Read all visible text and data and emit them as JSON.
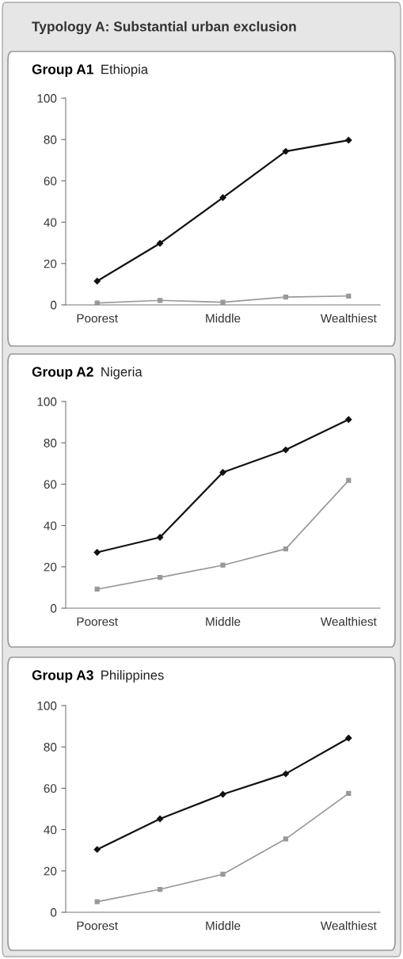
{
  "chart_data": [
    {
      "type": "line",
      "title": "Group A1",
      "subtitle": "Ethiopia",
      "annotations": [
        "Typology A: Substantial urban exclusion"
      ],
      "categories": [
        "Poorest",
        null,
        "Middle",
        null,
        "Wealthiest"
      ],
      "ylim": [
        0,
        100
      ],
      "yticks": [
        0,
        20,
        40,
        60,
        80,
        100
      ],
      "grid": false,
      "legend": false,
      "series": [
        {
          "color": "#111111",
          "marker": "diamond",
          "values": [
            11.5,
            29.8,
            51.9,
            74.3,
            79.7
          ]
        },
        {
          "color": "#999999",
          "marker": "square",
          "values": [
            0.9,
            2.2,
            1.3,
            3.8,
            4.3
          ]
        }
      ]
    },
    {
      "type": "line",
      "title": "Group A2",
      "subtitle": "Nigeria",
      "categories": [
        "Poorest",
        null,
        "Middle",
        null,
        "Wealthiest"
      ],
      "ylim": [
        0,
        100
      ],
      "yticks": [
        0,
        20,
        40,
        60,
        80,
        100
      ],
      "grid": false,
      "legend": false,
      "series": [
        {
          "color": "#111111",
          "marker": "diamond",
          "values": [
            27.0,
            34.3,
            65.7,
            76.6,
            91.3
          ]
        },
        {
          "color": "#999999",
          "marker": "square",
          "values": [
            9.2,
            14.9,
            20.8,
            28.7,
            61.8
          ]
        }
      ]
    },
    {
      "type": "line",
      "title": "Group A3",
      "subtitle": "Philippines",
      "categories": [
        "Poorest",
        null,
        "Middle",
        null,
        "Wealthiest"
      ],
      "ylim": [
        0,
        100
      ],
      "yticks": [
        0,
        20,
        40,
        60,
        80,
        100
      ],
      "grid": false,
      "legend": false,
      "series": [
        {
          "color": "#111111",
          "marker": "diamond",
          "values": [
            30.4,
            45.2,
            57.1,
            67.0,
            84.3
          ]
        },
        {
          "color": "#999999",
          "marker": "square",
          "values": [
            5.1,
            11.1,
            18.4,
            35.5,
            57.5
          ]
        }
      ]
    }
  ]
}
